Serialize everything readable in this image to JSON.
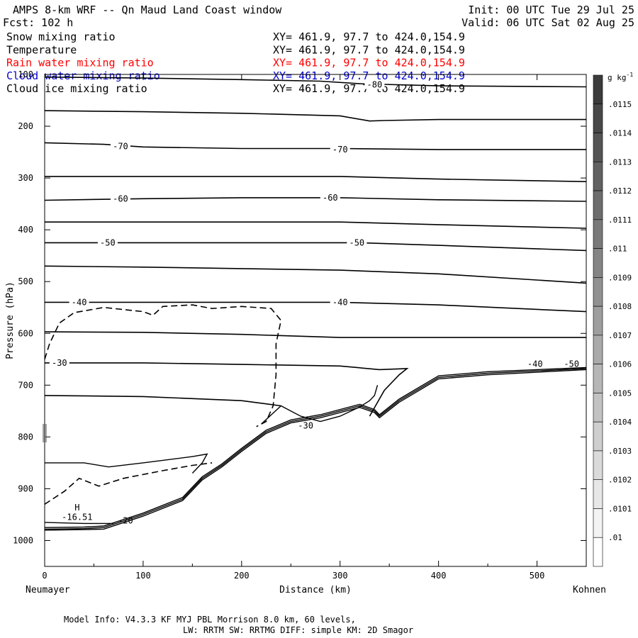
{
  "header": {
    "title": "AMPS 8-km WRF -- Qn Maud Land Coast window",
    "init": "Init: 00 UTC Tue 29 Jul 25",
    "fcst": "Fcst:  102 h",
    "valid": "Valid: 06 UTC Sat 02 Aug 25"
  },
  "fields": [
    {
      "name": "Snow mixing ratio",
      "xy": "XY= 461.9, 97.7 to 424.0,154.9",
      "color": "#000000"
    },
    {
      "name": "Temperature",
      "xy": "XY= 461.9, 97.7 to 424.0,154.9",
      "color": "#000000"
    },
    {
      "name": "Rain water mixing ratio",
      "xy": "XY= 461.9, 97.7 to 424.0,154.9",
      "color": "#ff0000"
    },
    {
      "name": "Cloud water mixing ratio",
      "xy": "XY= 461.9, 97.7 to 424.0,154.9",
      "color": "#0000cc"
    },
    {
      "name": "Cloud ice mixing ratio",
      "xy": "XY= 461.9, 97.7 to 424.0,154.9",
      "color": "#000000"
    }
  ],
  "chart_data": {
    "type": "contour cross-section",
    "xlabel": "Distance (km)",
    "ylabel": "Pressure (hPa)",
    "xlim": [
      0,
      550
    ],
    "ylim": [
      1050,
      100
    ],
    "x_ticks": [
      0,
      100,
      200,
      300,
      400,
      500
    ],
    "y_ticks": [
      100,
      200,
      300,
      400,
      500,
      600,
      700,
      800,
      900,
      1000
    ],
    "y_tick_labels": [
      "100",
      "200",
      "300",
      "400",
      "500",
      "600",
      "700",
      "800",
      "900",
      "1000"
    ],
    "left_endpoint": "Neumayer",
    "right_endpoint": "Kohnen",
    "grid": false,
    "colorbar": {
      "unit_label": "g kg",
      "unit_exponent": "-1",
      "ticks": [
        ".0115",
        ".0114",
        ".0113",
        ".0112",
        ".0111",
        ".011",
        ".0109",
        ".0108",
        ".0107",
        ".0106",
        ".0105",
        ".0104",
        ".0103",
        ".0102",
        ".0101",
        ".01"
      ]
    },
    "temperature_contours": [
      {
        "label": "-80",
        "points": [
          [
            0,
            105
          ],
          [
            100,
            107
          ],
          [
            200,
            110
          ],
          [
            280,
            113
          ],
          [
            320,
            118
          ],
          [
            400,
            122
          ],
          [
            550,
            124
          ]
        ],
        "label_at": [
          335,
          120
        ]
      },
      {
        "label": "",
        "points": [
          [
            0,
            170
          ],
          [
            100,
            172
          ],
          [
            200,
            175
          ],
          [
            300,
            180
          ],
          [
            330,
            190
          ],
          [
            345,
            189
          ],
          [
            400,
            187
          ],
          [
            550,
            187
          ]
        ]
      },
      {
        "label": "-70",
        "points": [
          [
            0,
            232
          ],
          [
            60,
            235
          ],
          [
            100,
            240
          ],
          [
            200,
            243
          ],
          [
            300,
            243
          ],
          [
            400,
            245
          ],
          [
            550,
            245
          ]
        ],
        "label_at": [
          77,
          239
        ],
        "label_at2": [
          300,
          245
        ]
      },
      {
        "label": "",
        "points": [
          [
            0,
            297
          ],
          [
            100,
            297
          ],
          [
            200,
            297
          ],
          [
            300,
            297
          ],
          [
            400,
            302
          ],
          [
            550,
            307
          ]
        ]
      },
      {
        "label": "-60",
        "points": [
          [
            0,
            343
          ],
          [
            100,
            340
          ],
          [
            200,
            338
          ],
          [
            300,
            338
          ],
          [
            400,
            342
          ],
          [
            550,
            345
          ]
        ],
        "label_at": [
          77,
          340
        ],
        "label_at2": [
          290,
          338
        ]
      },
      {
        "label": "",
        "points": [
          [
            0,
            385
          ],
          [
            100,
            385
          ],
          [
            200,
            385
          ],
          [
            300,
            385
          ],
          [
            400,
            390
          ],
          [
            550,
            397
          ]
        ]
      },
      {
        "label": "-50",
        "points": [
          [
            0,
            425
          ],
          [
            100,
            425
          ],
          [
            200,
            425
          ],
          [
            320,
            425
          ],
          [
            400,
            430
          ],
          [
            550,
            440
          ]
        ],
        "label_at": [
          64,
          425
        ],
        "label_at2": [
          317,
          425
        ]
      },
      {
        "label": "",
        "points": [
          [
            0,
            470
          ],
          [
            100,
            472
          ],
          [
            200,
            475
          ],
          [
            300,
            478
          ],
          [
            400,
            485
          ],
          [
            550,
            503
          ]
        ]
      },
      {
        "label": "-40",
        "points": [
          [
            0,
            540
          ],
          [
            100,
            540
          ],
          [
            200,
            540
          ],
          [
            300,
            540
          ],
          [
            400,
            545
          ],
          [
            550,
            558
          ]
        ],
        "label_at": [
          35,
          540
        ],
        "label_at2": [
          300,
          540
        ]
      },
      {
        "label": "",
        "points": [
          [
            0,
            597
          ],
          [
            100,
            598
          ],
          [
            200,
            602
          ],
          [
            300,
            608
          ],
          [
            400,
            608
          ],
          [
            550,
            608
          ]
        ]
      },
      {
        "label": "-30",
        "points": [
          [
            0,
            657
          ],
          [
            100,
            657
          ],
          [
            200,
            660
          ],
          [
            300,
            663
          ],
          [
            340,
            670
          ],
          [
            368,
            668
          ],
          [
            360,
            680
          ],
          [
            345,
            710
          ],
          [
            330,
            760
          ]
        ],
        "label_at": [
          15,
          657
        ],
        "label_at2": [
          265,
          778
        ]
      },
      {
        "label": "",
        "points": [
          [
            0,
            720
          ],
          [
            100,
            722
          ],
          [
            200,
            730
          ],
          [
            240,
            740
          ]
        ]
      }
    ],
    "annotations": [
      {
        "text": "H",
        "x": 33,
        "y": 942
      },
      {
        "text": "-16.51",
        "x": 33,
        "y": 960
      },
      {
        "text": "-20",
        "x": 82,
        "y": 967
      },
      {
        "text": "-40",
        "x": 498,
        "y": 665
      },
      {
        "text": "-50",
        "x": 535,
        "y": 665
      }
    ]
  },
  "footer": {
    "line1": "Model Info: V4.3.3   KF     MYJ PBL  Morrison             8.0 km,  60 levels,",
    "line2": "LW: RRTM SW: RRTMG   DIFF: simple KM: 2D Smagor"
  }
}
